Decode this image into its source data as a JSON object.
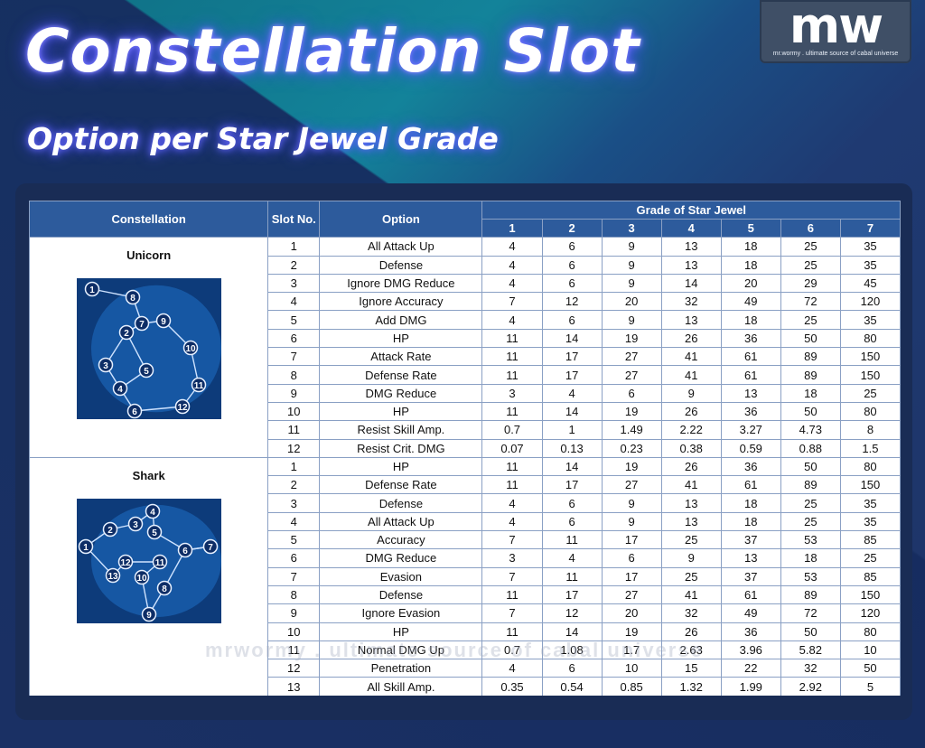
{
  "header": {
    "title": "Constellation Slot",
    "subtitle": "Option per Star Jewel Grade"
  },
  "logo": {
    "mark": "mw",
    "tagline": "mr.wormy . ultimate source of cabal universe"
  },
  "watermark": "mrwormy . ultimate source of cabal universe",
  "table": {
    "headers": {
      "constellation": "Constellation",
      "slot_no": "Slot No.",
      "option": "Option",
      "grade": "Grade of Star Jewel",
      "grades": [
        "1",
        "2",
        "3",
        "4",
        "5",
        "6",
        "7"
      ]
    },
    "groups": [
      {
        "name": "Unicorn",
        "image_icon": "unicorn-constellation-icon",
        "rows": [
          {
            "slot": "1",
            "option": "All Attack Up",
            "values": [
              "4",
              "6",
              "9",
              "13",
              "18",
              "25",
              "35"
            ]
          },
          {
            "slot": "2",
            "option": "Defense",
            "values": [
              "4",
              "6",
              "9",
              "13",
              "18",
              "25",
              "35"
            ]
          },
          {
            "slot": "3",
            "option": "Ignore DMG Reduce",
            "values": [
              "4",
              "6",
              "9",
              "14",
              "20",
              "29",
              "45"
            ]
          },
          {
            "slot": "4",
            "option": "Ignore Accuracy",
            "values": [
              "7",
              "12",
              "20",
              "32",
              "49",
              "72",
              "120"
            ]
          },
          {
            "slot": "5",
            "option": "Add DMG",
            "values": [
              "4",
              "6",
              "9",
              "13",
              "18",
              "25",
              "35"
            ]
          },
          {
            "slot": "6",
            "option": "HP",
            "values": [
              "11",
              "14",
              "19",
              "26",
              "36",
              "50",
              "80"
            ]
          },
          {
            "slot": "7",
            "option": "Attack Rate",
            "values": [
              "11",
              "17",
              "27",
              "41",
              "61",
              "89",
              "150"
            ]
          },
          {
            "slot": "8",
            "option": "Defense Rate",
            "values": [
              "11",
              "17",
              "27",
              "41",
              "61",
              "89",
              "150"
            ]
          },
          {
            "slot": "9",
            "option": "DMG Reduce",
            "values": [
              "3",
              "4",
              "6",
              "9",
              "13",
              "18",
              "25"
            ]
          },
          {
            "slot": "10",
            "option": "HP",
            "values": [
              "11",
              "14",
              "19",
              "26",
              "36",
              "50",
              "80"
            ]
          },
          {
            "slot": "11",
            "option": "Resist Skill Amp.",
            "values": [
              "0.7",
              "1",
              "1.49",
              "2.22",
              "3.27",
              "4.73",
              "8"
            ]
          },
          {
            "slot": "12",
            "option": "Resist Crit. DMG",
            "values": [
              "0.07",
              "0.13",
              "0.23",
              "0.38",
              "0.59",
              "0.88",
              "1.5"
            ]
          }
        ]
      },
      {
        "name": "Shark",
        "image_icon": "shark-constellation-icon",
        "rows": [
          {
            "slot": "1",
            "option": "HP",
            "values": [
              "11",
              "14",
              "19",
              "26",
              "36",
              "50",
              "80"
            ]
          },
          {
            "slot": "2",
            "option": "Defense Rate",
            "values": [
              "11",
              "17",
              "27",
              "41",
              "61",
              "89",
              "150"
            ]
          },
          {
            "slot": "3",
            "option": "Defense",
            "values": [
              "4",
              "6",
              "9",
              "13",
              "18",
              "25",
              "35"
            ]
          },
          {
            "slot": "4",
            "option": "All Attack Up",
            "values": [
              "4",
              "6",
              "9",
              "13",
              "18",
              "25",
              "35"
            ]
          },
          {
            "slot": "5",
            "option": "Accuracy",
            "values": [
              "7",
              "11",
              "17",
              "25",
              "37",
              "53",
              "85"
            ]
          },
          {
            "slot": "6",
            "option": "DMG Reduce",
            "values": [
              "3",
              "4",
              "6",
              "9",
              "13",
              "18",
              "25"
            ]
          },
          {
            "slot": "7",
            "option": "Evasion",
            "values": [
              "7",
              "11",
              "17",
              "25",
              "37",
              "53",
              "85"
            ]
          },
          {
            "slot": "8",
            "option": "Defense",
            "values": [
              "11",
              "17",
              "27",
              "41",
              "61",
              "89",
              "150"
            ]
          },
          {
            "slot": "9",
            "option": "Ignore Evasion",
            "values": [
              "7",
              "12",
              "20",
              "32",
              "49",
              "72",
              "120"
            ]
          },
          {
            "slot": "10",
            "option": "HP",
            "values": [
              "11",
              "14",
              "19",
              "26",
              "36",
              "50",
              "80"
            ]
          },
          {
            "slot": "11",
            "option": "Normal DMG Up",
            "values": [
              "0.7",
              "1.08",
              "1.7",
              "2.63",
              "3.96",
              "5.82",
              "10"
            ]
          },
          {
            "slot": "12",
            "option": "Penetration",
            "values": [
              "4",
              "6",
              "10",
              "15",
              "22",
              "32",
              "50"
            ]
          },
          {
            "slot": "13",
            "option": "All Skill Amp.",
            "values": [
              "0.35",
              "0.54",
              "0.85",
              "1.32",
              "1.99",
              "2.92",
              "5"
            ]
          }
        ]
      }
    ]
  },
  "constellation_nodes": {
    "unicorn": [
      "1",
      "2",
      "3",
      "4",
      "5",
      "6",
      "7",
      "8",
      "9",
      "10",
      "11",
      "12"
    ],
    "shark": [
      "1",
      "2",
      "3",
      "4",
      "5",
      "6",
      "7",
      "8",
      "9",
      "10",
      "11",
      "12",
      "13"
    ]
  },
  "colors": {
    "header_bg": "#2d5b9c",
    "panel_bg": "#192c55",
    "title_glow": "#4a4cff"
  }
}
